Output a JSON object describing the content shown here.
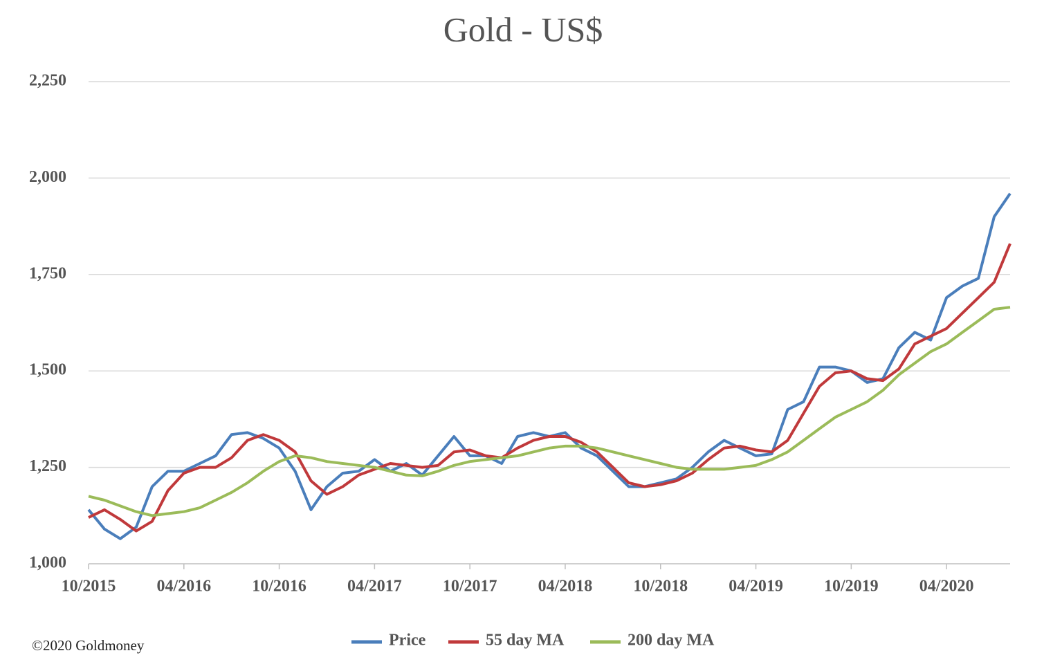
{
  "chart_data": {
    "type": "line",
    "title": "Gold - US$",
    "x": [
      "10/2015",
      "11/2015",
      "12/2015",
      "01/2016",
      "02/2016",
      "03/2016",
      "04/2016",
      "05/2016",
      "06/2016",
      "07/2016",
      "08/2016",
      "09/2016",
      "10/2016",
      "11/2016",
      "12/2016",
      "01/2017",
      "02/2017",
      "03/2017",
      "04/2017",
      "05/2017",
      "06/2017",
      "07/2017",
      "08/2017",
      "09/2017",
      "10/2017",
      "11/2017",
      "12/2017",
      "01/2018",
      "02/2018",
      "03/2018",
      "04/2018",
      "05/2018",
      "06/2018",
      "07/2018",
      "08/2018",
      "09/2018",
      "10/2018",
      "11/2018",
      "12/2018",
      "01/2019",
      "02/2019",
      "03/2019",
      "04/2019",
      "05/2019",
      "06/2019",
      "07/2019",
      "08/2019",
      "09/2019",
      "10/2019",
      "11/2019",
      "12/2019",
      "01/2020",
      "02/2020",
      "03/2020",
      "04/2020",
      "05/2020",
      "06/2020",
      "07/2020",
      "08/2020"
    ],
    "series": [
      {
        "name": "Price",
        "color": "#4a7ebb",
        "values": [
          1140,
          1090,
          1065,
          1095,
          1200,
          1240,
          1240,
          1260,
          1280,
          1335,
          1340,
          1325,
          1300,
          1240,
          1140,
          1200,
          1235,
          1240,
          1270,
          1240,
          1260,
          1230,
          1280,
          1330,
          1280,
          1280,
          1260,
          1330,
          1340,
          1330,
          1340,
          1300,
          1280,
          1240,
          1200,
          1200,
          1210,
          1220,
          1250,
          1290,
          1320,
          1300,
          1280,
          1285,
          1400,
          1420,
          1510,
          1510,
          1500,
          1470,
          1480,
          1560,
          1600,
          1580,
          1690,
          1720,
          1740,
          1900,
          1960
        ]
      },
      {
        "name": "55 day MA",
        "color": "#c0393b",
        "values": [
          1120,
          1140,
          1115,
          1085,
          1110,
          1190,
          1235,
          1250,
          1250,
          1275,
          1320,
          1335,
          1320,
          1290,
          1215,
          1180,
          1200,
          1230,
          1245,
          1260,
          1255,
          1250,
          1255,
          1290,
          1295,
          1280,
          1275,
          1300,
          1320,
          1330,
          1330,
          1315,
          1290,
          1250,
          1210,
          1200,
          1205,
          1215,
          1235,
          1270,
          1300,
          1305,
          1295,
          1290,
          1320,
          1390,
          1460,
          1495,
          1500,
          1480,
          1475,
          1505,
          1570,
          1590,
          1610,
          1650,
          1690,
          1730,
          1830
        ]
      },
      {
        "name": "200 day MA",
        "color": "#9bbb59",
        "values": [
          1175,
          1165,
          1150,
          1135,
          1125,
          1130,
          1135,
          1145,
          1165,
          1185,
          1210,
          1240,
          1265,
          1280,
          1275,
          1265,
          1260,
          1255,
          1250,
          1240,
          1230,
          1228,
          1240,
          1255,
          1265,
          1270,
          1275,
          1280,
          1290,
          1300,
          1305,
          1305,
          1300,
          1290,
          1280,
          1270,
          1260,
          1250,
          1245,
          1245,
          1245,
          1250,
          1255,
          1270,
          1290,
          1320,
          1350,
          1380,
          1400,
          1420,
          1450,
          1490,
          1520,
          1550,
          1570,
          1600,
          1630,
          1660,
          1665
        ]
      }
    ],
    "xlim": [
      "10/2015",
      "08/2020"
    ],
    "xticks": [
      "10/2015",
      "04/2016",
      "10/2016",
      "04/2017",
      "10/2017",
      "04/2018",
      "10/2018",
      "04/2019",
      "10/2019",
      "04/2020"
    ],
    "ylim": [
      1000,
      2250
    ],
    "yticks": [
      {
        "value": 1000,
        "label": "1,000"
      },
      {
        "value": 1250,
        "label": "1,250"
      },
      {
        "value": 1500,
        "label": "1,500"
      },
      {
        "value": 1750,
        "label": "1,750"
      },
      {
        "value": 2000,
        "label": "2,000"
      },
      {
        "value": 2250,
        "label": "2,250"
      }
    ],
    "grid": true,
    "legend": "bottom"
  },
  "footer": "©2020 Goldmoney"
}
